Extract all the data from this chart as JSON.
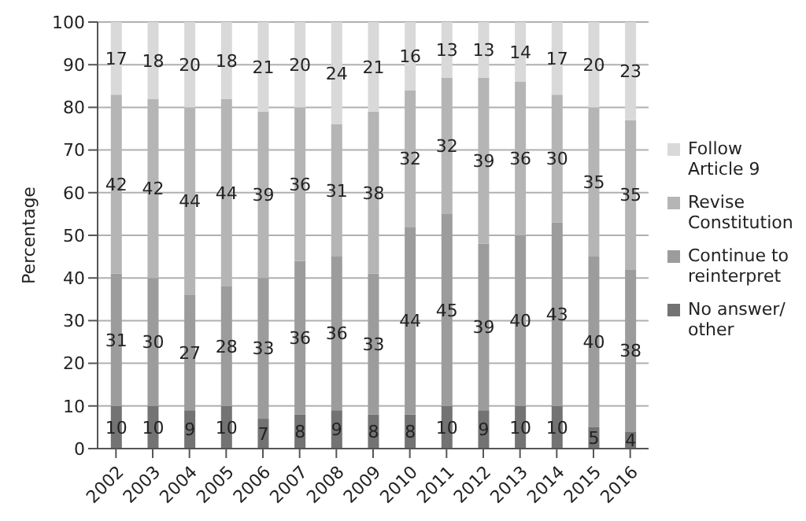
{
  "chart_data": {
    "type": "bar",
    "stacked": true,
    "ylabel": "Percentage",
    "categories": [
      "2002",
      "2003",
      "2004",
      "2005",
      "2006",
      "2007",
      "2008",
      "2009",
      "2010",
      "2011",
      "2012",
      "2013",
      "2014",
      "2015",
      "2016"
    ],
    "series": [
      {
        "name": "No answer/ other",
        "color": "#737373",
        "values": [
          10,
          10,
          9,
          10,
          7,
          8,
          9,
          8,
          8,
          10,
          9,
          10,
          10,
          5,
          4
        ]
      },
      {
        "name": "Continue to reinterpret",
        "color": "#9c9c9c",
        "values": [
          31,
          30,
          27,
          28,
          33,
          36,
          36,
          33,
          44,
          45,
          39,
          40,
          43,
          40,
          38
        ]
      },
      {
        "name": "Revise Constitution",
        "color": "#b5b5b5",
        "values": [
          42,
          42,
          44,
          44,
          39,
          36,
          31,
          38,
          32,
          32,
          39,
          36,
          30,
          35,
          35
        ]
      },
      {
        "name": "Follow Article 9",
        "color": "#d9d9d9",
        "values": [
          17,
          18,
          20,
          18,
          21,
          20,
          24,
          21,
          16,
          13,
          13,
          14,
          17,
          20,
          23
        ]
      }
    ],
    "ylim": [
      0,
      100
    ],
    "yticks": [
      0,
      10,
      20,
      30,
      40,
      50,
      60,
      70,
      80,
      90,
      100
    ],
    "grid": "y",
    "legend": "right",
    "data_labels": true
  }
}
